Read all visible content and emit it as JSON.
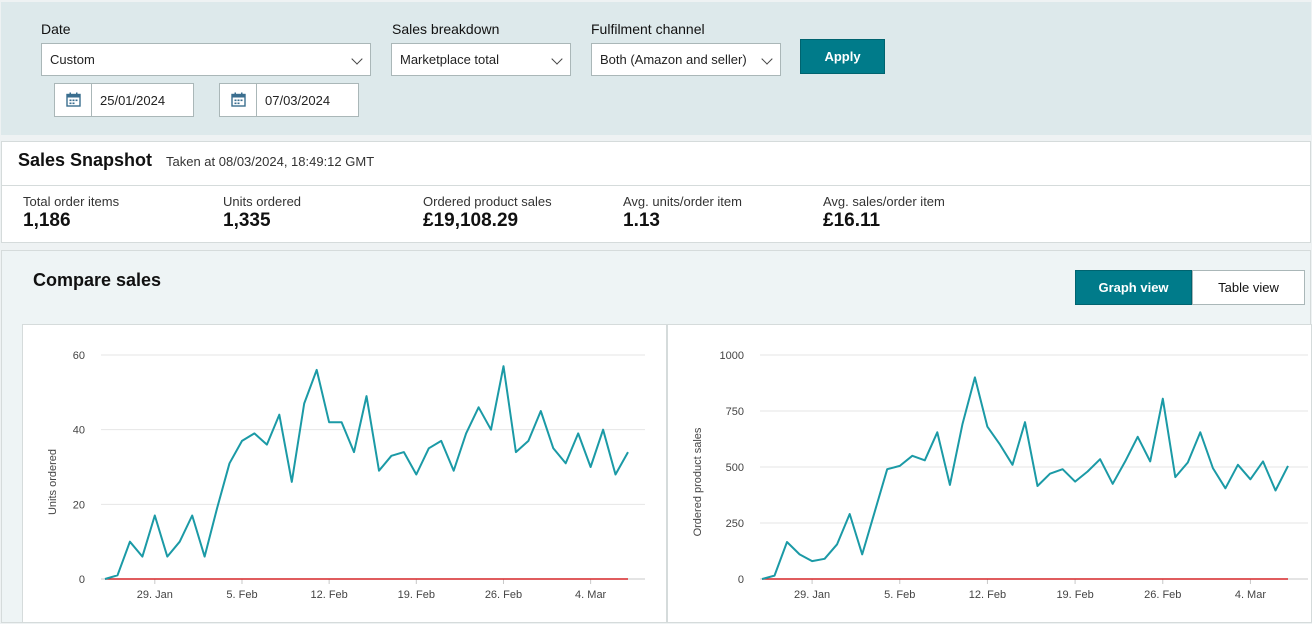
{
  "filters": {
    "date_label": "Date",
    "date_value": "Custom",
    "start_date": "25/01/2024",
    "end_date": "07/03/2024",
    "breakdown_label": "Sales breakdown",
    "breakdown_value": "Marketplace total",
    "channel_label": "Fulfilment channel",
    "channel_value": "Both (Amazon and seller)",
    "apply_label": "Apply"
  },
  "snapshot": {
    "title": "Sales Snapshot",
    "taken_at": "Taken at 08/03/2024, 18:49:12 GMT",
    "metrics": [
      {
        "label": "Total order items",
        "value": "1,186"
      },
      {
        "label": "Units ordered",
        "value": "1,335"
      },
      {
        "label": "Ordered product sales",
        "value": "£19,108.29"
      },
      {
        "label": "Avg. units/order item",
        "value": "1.13"
      },
      {
        "label": "Avg. sales/order item",
        "value": "£16.11"
      }
    ]
  },
  "compare": {
    "title": "Compare sales",
    "graph_view_label": "Graph view",
    "table_view_label": "Table view"
  },
  "colors": {
    "accent": "#007b8a",
    "series_current": "#1b9aa6",
    "series_baseline": "#d62728"
  },
  "chart_data": [
    {
      "type": "line",
      "ylabel": "Units ordered",
      "xlabel": "",
      "ylim": [
        0,
        60
      ],
      "yticks": [
        0,
        20,
        40,
        60
      ],
      "x_ticks": [
        "29. Jan",
        "5. Feb",
        "12. Feb",
        "19. Feb",
        "26. Feb",
        "4. Mar"
      ],
      "x_tick_day_index": [
        4,
        11,
        18,
        25,
        32,
        39
      ],
      "grid": true,
      "series": [
        {
          "values": [
            0,
            1,
            10,
            6,
            17,
            6,
            10,
            17,
            6,
            19,
            31,
            37,
            39,
            36,
            44,
            26,
            47,
            56,
            42,
            42,
            34,
            49,
            29,
            33,
            34,
            28,
            35,
            37,
            29,
            39,
            46,
            40,
            57,
            34,
            37,
            45,
            35,
            31,
            39,
            30,
            40,
            28,
            34
          ]
        },
        {
          "values": [
            0,
            0,
            0,
            0,
            0,
            0,
            0,
            0,
            0,
            0,
            0,
            0,
            0,
            0,
            0,
            0,
            0,
            0,
            0,
            0,
            0,
            0,
            0,
            0,
            0,
            0,
            0,
            0,
            0,
            0,
            0,
            0,
            0,
            0,
            0,
            0,
            0,
            0,
            0,
            0,
            0,
            0,
            0
          ]
        }
      ]
    },
    {
      "type": "line",
      "ylabel": "Ordered product sales",
      "xlabel": "",
      "ylim": [
        0,
        1000
      ],
      "yticks": [
        0,
        250,
        500,
        750,
        1000
      ],
      "x_ticks": [
        "29. Jan",
        "5. Feb",
        "12. Feb",
        "19. Feb",
        "26. Feb",
        "4. Mar"
      ],
      "x_tick_day_index": [
        4,
        11,
        18,
        25,
        32,
        39
      ],
      "grid": true,
      "series": [
        {
          "values": [
            0,
            15,
            165,
            110,
            80,
            90,
            155,
            290,
            110,
            300,
            490,
            505,
            550,
            530,
            655,
            420,
            690,
            900,
            680,
            600,
            510,
            700,
            415,
            470,
            490,
            435,
            480,
            535,
            425,
            525,
            635,
            525,
            805,
            455,
            520,
            655,
            495,
            405,
            510,
            445,
            525,
            395,
            505
          ]
        },
        {
          "values": [
            0,
            0,
            0,
            0,
            0,
            0,
            0,
            0,
            0,
            0,
            0,
            0,
            0,
            0,
            0,
            0,
            0,
            0,
            0,
            0,
            0,
            0,
            0,
            0,
            0,
            0,
            0,
            0,
            0,
            0,
            0,
            0,
            0,
            0,
            0,
            0,
            0,
            0,
            0,
            0,
            0,
            0,
            0
          ]
        }
      ]
    }
  ]
}
